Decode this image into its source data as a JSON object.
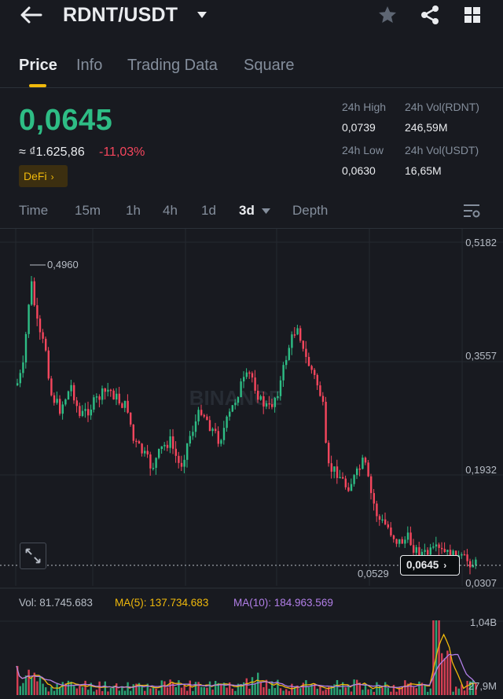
{
  "header": {
    "title": "RDNT/USDT",
    "icons": [
      "back-arrow-icon",
      "dropdown-caret-icon",
      "star-icon",
      "share-icon",
      "grid-icon"
    ]
  },
  "tabs": [
    {
      "label": "Price",
      "active": true
    },
    {
      "label": "Info",
      "active": false
    },
    {
      "label": "Trading Data",
      "active": false
    },
    {
      "label": "Square",
      "active": false
    }
  ],
  "price": {
    "last": "0,0645",
    "fiat": "≈ ₫1.625,86",
    "change": "-11,03%",
    "tag": "DeFi"
  },
  "stats": {
    "high_label": "24h High",
    "high": "0,0739",
    "vol_base_label": "24h Vol(RDNT)",
    "vol_base": "246,59M",
    "low_label": "24h Low",
    "low": "0,0630",
    "vol_quote_label": "24h Vol(USDT)",
    "vol_quote": "16,65M"
  },
  "timeframes": [
    {
      "label": "Time",
      "active": false
    },
    {
      "label": "15m",
      "active": false
    },
    {
      "label": "1h",
      "active": false
    },
    {
      "label": "4h",
      "active": false
    },
    {
      "label": "1d",
      "active": false
    },
    {
      "label": "3d",
      "active": true
    },
    {
      "label": "Depth",
      "active": false
    }
  ],
  "chart": {
    "y_ticks": [
      "0,5182",
      "0,3557",
      "0,1932",
      "0,0307"
    ],
    "max_label": "0,4960",
    "min_label": "0,0529",
    "current_label": "0,0645",
    "watermark": "BINANCE"
  },
  "indicators": {
    "vol": "Vol: 81.745.683",
    "ma5": "MA(5): 137.734.683",
    "ma10": "MA(10): 184.963.569"
  },
  "volume_axis": {
    "top": "1,04B",
    "bottom": "27,9M"
  },
  "chart_data": {
    "type": "candlestick",
    "ylim": [
      0.0307,
      0.5182
    ],
    "y_ticks": [
      0.5182,
      0.3557,
      0.1932,
      0.0307
    ],
    "current_price": 0.0645,
    "period_high": 0.496,
    "period_low": 0.0529,
    "volume_ylim": [
      27900000,
      1040000000
    ]
  },
  "colors": {
    "up": "#2ebd85",
    "down": "#f6465d",
    "accent": "#f0b90b",
    "ma10": "#b27fe8"
  }
}
